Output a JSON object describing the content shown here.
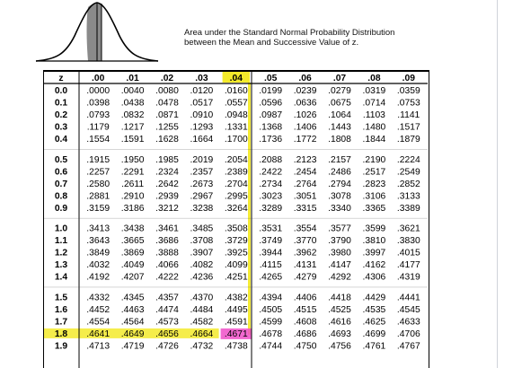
{
  "caption": {
    "line1": "Area under the Standard Normal Probability Distribution",
    "line2": "between the Mean and Successive Value of z."
  },
  "table": {
    "corner_label": "z",
    "columns": [
      ".00",
      ".01",
      ".02",
      ".03",
      ".04",
      ".05",
      ".06",
      ".07",
      ".08",
      ".09"
    ],
    "blocks": [
      [
        {
          "z": "0.0",
          "values": [
            ".0000",
            ".0040",
            ".0080",
            ".0120",
            ".0160",
            ".0199",
            ".0239",
            ".0279",
            ".0319",
            ".0359"
          ]
        },
        {
          "z": "0.1",
          "values": [
            ".0398",
            ".0438",
            ".0478",
            ".0517",
            ".0557",
            ".0596",
            ".0636",
            ".0675",
            ".0714",
            ".0753"
          ]
        },
        {
          "z": "0.2",
          "values": [
            ".0793",
            ".0832",
            ".0871",
            ".0910",
            ".0948",
            ".0987",
            ".1026",
            ".1064",
            ".1103",
            ".1141"
          ]
        },
        {
          "z": "0.3",
          "values": [
            ".1179",
            ".1217",
            ".1255",
            ".1293",
            ".1331",
            ".1368",
            ".1406",
            ".1443",
            ".1480",
            ".1517"
          ]
        },
        {
          "z": "0.4",
          "values": [
            ".1554",
            ".1591",
            ".1628",
            ".1664",
            ".1700",
            ".1736",
            ".1772",
            ".1808",
            ".1844",
            ".1879"
          ]
        }
      ],
      [
        {
          "z": "0.5",
          "values": [
            ".1915",
            ".1950",
            ".1985",
            ".2019",
            ".2054",
            ".2088",
            ".2123",
            ".2157",
            ".2190",
            ".2224"
          ]
        },
        {
          "z": "0.6",
          "values": [
            ".2257",
            ".2291",
            ".2324",
            ".2357",
            ".2389",
            ".2422",
            ".2454",
            ".2486",
            ".2517",
            ".2549"
          ]
        },
        {
          "z": "0.7",
          "values": [
            ".2580",
            ".2611",
            ".2642",
            ".2673",
            ".2704",
            ".2734",
            ".2764",
            ".2794",
            ".2823",
            ".2852"
          ]
        },
        {
          "z": "0.8",
          "values": [
            ".2881",
            ".2910",
            ".2939",
            ".2967",
            ".2995",
            ".3023",
            ".3051",
            ".3078",
            ".3106",
            ".3133"
          ]
        },
        {
          "z": "0.9",
          "values": [
            ".3159",
            ".3186",
            ".3212",
            ".3238",
            ".3264",
            ".3289",
            ".3315",
            ".3340",
            ".3365",
            ".3389"
          ]
        }
      ],
      [
        {
          "z": "1.0",
          "values": [
            ".3413",
            ".3438",
            ".3461",
            ".3485",
            ".3508",
            ".3531",
            ".3554",
            ".3577",
            ".3599",
            ".3621"
          ]
        },
        {
          "z": "1.1",
          "values": [
            ".3643",
            ".3665",
            ".3686",
            ".3708",
            ".3729",
            ".3749",
            ".3770",
            ".3790",
            ".3810",
            ".3830"
          ]
        },
        {
          "z": "1.2",
          "values": [
            ".3849",
            ".3869",
            ".3888",
            ".3907",
            ".3925",
            ".3944",
            ".3962",
            ".3980",
            ".3997",
            ".4015"
          ]
        },
        {
          "z": "1.3",
          "values": [
            ".4032",
            ".4049",
            ".4066",
            ".4082",
            ".4099",
            ".4115",
            ".4131",
            ".4147",
            ".4162",
            ".4177"
          ]
        },
        {
          "z": "1.4",
          "values": [
            ".4192",
            ".4207",
            ".4222",
            ".4236",
            ".4251",
            ".4265",
            ".4279",
            ".4292",
            ".4306",
            ".4319"
          ]
        }
      ],
      [
        {
          "z": "1.5",
          "values": [
            ".4332",
            ".4345",
            ".4357",
            ".4370",
            ".4382",
            ".4394",
            ".4406",
            ".4418",
            ".4429",
            ".4441"
          ]
        },
        {
          "z": "1.6",
          "values": [
            ".4452",
            ".4463",
            ".4474",
            ".4484",
            ".4495",
            ".4505",
            ".4515",
            ".4525",
            ".4535",
            ".4545"
          ]
        },
        {
          "z": "1.7",
          "values": [
            ".4554",
            ".4564",
            ".4573",
            ".4582",
            ".4591",
            ".4599",
            ".4608",
            ".4616",
            ".4625",
            ".4633"
          ]
        },
        {
          "z": "1.8",
          "values": [
            ".4641",
            ".4649",
            ".4656",
            ".4664",
            ".4671",
            ".4678",
            ".4686",
            ".4693",
            ".4699",
            ".4706"
          ]
        },
        {
          "z": "1.9",
          "values": [
            ".4713",
            ".4719",
            ".4726",
            ".4732",
            ".4738",
            ".4744",
            ".4750",
            ".4756",
            ".4761",
            ".4767"
          ]
        }
      ]
    ],
    "highlight": {
      "column": ".04",
      "row_z": "1.8",
      "answer": ".4671",
      "marker_color": "#f3ea2b",
      "answer_color": "#f04fc8"
    }
  }
}
